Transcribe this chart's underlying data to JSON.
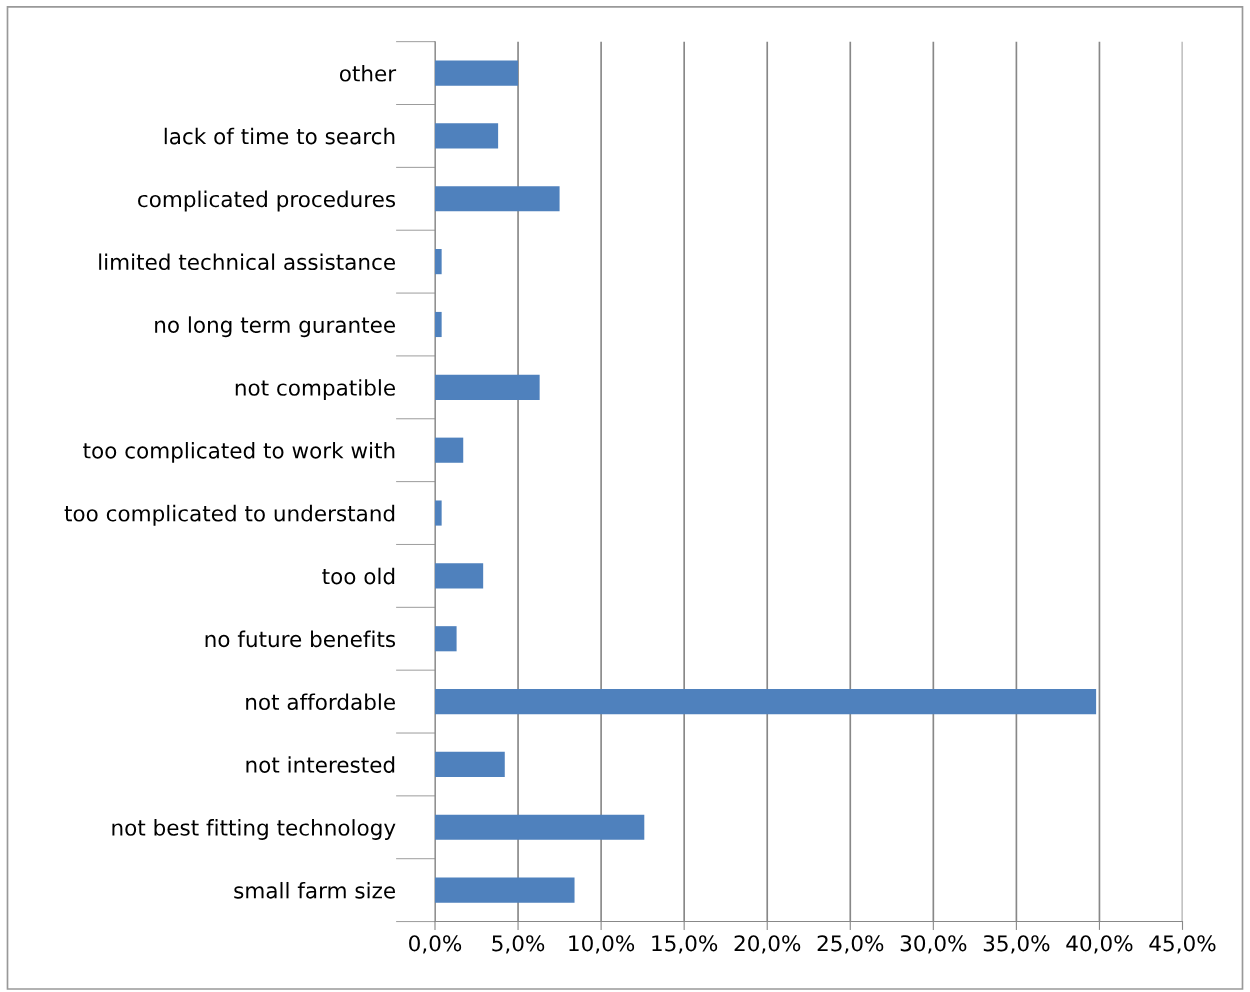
{
  "chart_data": {
    "type": "bar",
    "orientation": "horizontal",
    "categories": [
      "other",
      "lack of time to search",
      "complicated procedures",
      "limited technical assistance",
      "no long term gurantee",
      "not compatible",
      "too complicated to work with",
      "too complicated to understand",
      "too old",
      "no future benefits",
      "not affordable",
      "not interested",
      "not best fitting technology",
      "small farm size"
    ],
    "values": [
      5.0,
      3.8,
      7.5,
      0.4,
      0.4,
      6.3,
      1.7,
      0.4,
      2.9,
      1.3,
      39.8,
      4.2,
      12.6,
      8.4
    ],
    "color": "#4f81bd",
    "xlim": [
      0,
      45
    ],
    "xticks": [
      {
        "value": 0,
        "label": "0,0%"
      },
      {
        "value": 5,
        "label": "5,0%"
      },
      {
        "value": 10,
        "label": "10,0%"
      },
      {
        "value": 15,
        "label": "15,0%"
      },
      {
        "value": 20,
        "label": "20,0%"
      },
      {
        "value": 25,
        "label": "25,0%"
      },
      {
        "value": 30,
        "label": "30,0%"
      },
      {
        "value": 35,
        "label": "35,0%"
      },
      {
        "value": 40,
        "label": "40,0%"
      },
      {
        "value": 45,
        "label": "45,0%"
      }
    ],
    "grid": "x"
  }
}
